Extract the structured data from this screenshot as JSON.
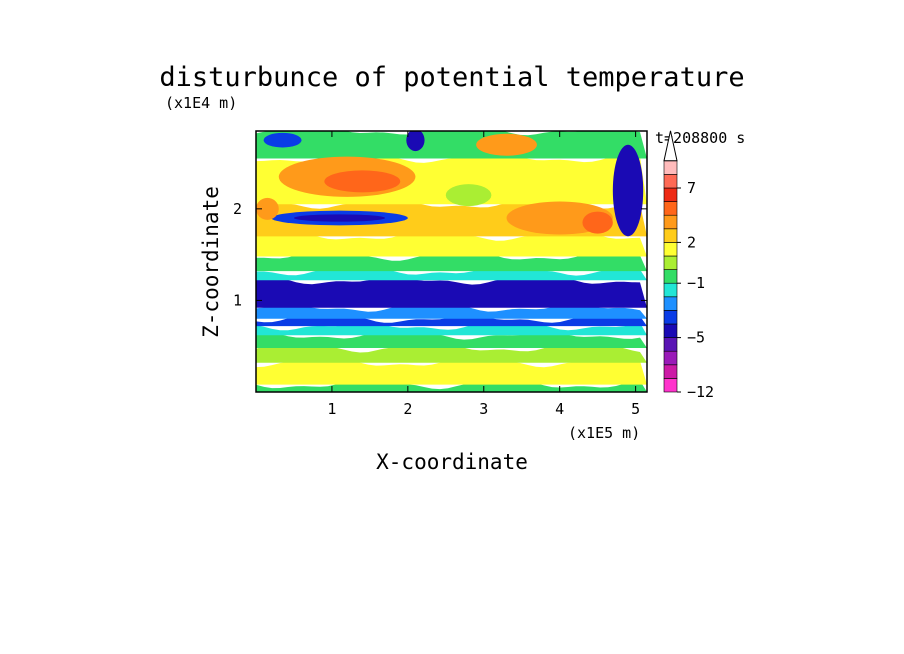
{
  "chart_data": {
    "type": "heatmap",
    "title": "disturbunce of potential temperature",
    "xlabel": "X-coordinate",
    "ylabel": "Z-coordinate",
    "x_scale_label": "(x1E5 m)",
    "y_scale_label": "(x1E4 m)",
    "time_label": "t=208800 s",
    "xlim": [
      0,
      5.15
    ],
    "ylim": [
      0,
      2.85
    ],
    "x_ticks": [
      "1",
      "2",
      "3",
      "4",
      "5"
    ],
    "x_tick_values": [
      1,
      2,
      3,
      4,
      5
    ],
    "y_ticks": [
      "1",
      "2"
    ],
    "y_tick_values": [
      1,
      2
    ],
    "colorbar": {
      "colors": [
        "#ff33cc",
        "#cc1aa6",
        "#9a1ab8",
        "#5a14b4",
        "#1a0ab4",
        "#0a3ce6",
        "#1e90ff",
        "#22e6d6",
        "#33dd66",
        "#aaee33",
        "#ffff33",
        "#ffcc1a",
        "#ff9a1a",
        "#ff661a",
        "#ee2a14",
        "#ff6a55",
        "#ffbbbb"
      ],
      "tick_labels": [
        "7",
        "2",
        "-1",
        "-5",
        "-12"
      ],
      "tick_band_index": [
        15,
        11,
        8,
        4,
        0
      ]
    },
    "bands": [
      {
        "z0": 0.0,
        "z1": 0.08,
        "level": "green"
      },
      {
        "z0": 0.08,
        "z1": 0.32,
        "level": "yellow"
      },
      {
        "z0": 0.32,
        "z1": 0.48,
        "level": "light-green"
      },
      {
        "z0": 0.48,
        "z1": 0.62,
        "level": "green"
      },
      {
        "z0": 0.62,
        "z1": 0.72,
        "level": "cyan"
      },
      {
        "z0": 0.72,
        "z1": 0.8,
        "level": "blue"
      },
      {
        "z0": 0.8,
        "z1": 0.92,
        "level": "light-blue"
      },
      {
        "z0": 0.92,
        "z1": 1.22,
        "level": "dark-blue"
      },
      {
        "z0": 1.22,
        "z1": 1.32,
        "level": "cyan"
      },
      {
        "z0": 1.32,
        "z1": 1.48,
        "level": "green"
      },
      {
        "z0": 1.48,
        "z1": 1.7,
        "level": "yellow"
      },
      {
        "z0": 1.7,
        "z1": 2.05,
        "level": "orange-light"
      },
      {
        "z0": 2.05,
        "z1": 2.55,
        "level": "yellow"
      },
      {
        "z0": 2.55,
        "z1": 2.85,
        "level": "green"
      }
    ],
    "features": [
      {
        "x": 1.2,
        "z": 2.35,
        "rx": 0.9,
        "rz": 0.22,
        "level": "orange"
      },
      {
        "x": 1.4,
        "z": 2.3,
        "rx": 0.5,
        "rz": 0.12,
        "level": "red-orange"
      },
      {
        "x": 1.1,
        "z": 1.9,
        "rx": 0.9,
        "rz": 0.08,
        "level": "blue"
      },
      {
        "x": 1.1,
        "z": 1.9,
        "rx": 0.6,
        "rz": 0.04,
        "level": "dark-blue"
      },
      {
        "x": 4.0,
        "z": 1.9,
        "rx": 0.7,
        "rz": 0.18,
        "level": "orange"
      },
      {
        "x": 2.1,
        "z": 2.75,
        "rx": 0.12,
        "rz": 0.12,
        "level": "dark-blue"
      },
      {
        "x": 0.35,
        "z": 2.75,
        "rx": 0.25,
        "rz": 0.08,
        "level": "blue"
      },
      {
        "x": 3.3,
        "z": 2.7,
        "rx": 0.4,
        "rz": 0.12,
        "level": "orange"
      },
      {
        "x": 4.9,
        "z": 2.2,
        "rx": 0.2,
        "rz": 0.5,
        "level": "dark-blue"
      },
      {
        "x": 0.15,
        "z": 2.0,
        "rx": 0.15,
        "rz": 0.12,
        "level": "orange"
      },
      {
        "x": 2.8,
        "z": 2.15,
        "rx": 0.3,
        "rz": 0.12,
        "level": "light-green"
      },
      {
        "x": 4.5,
        "z": 1.85,
        "rx": 0.2,
        "rz": 0.12,
        "level": "red-orange"
      }
    ]
  }
}
